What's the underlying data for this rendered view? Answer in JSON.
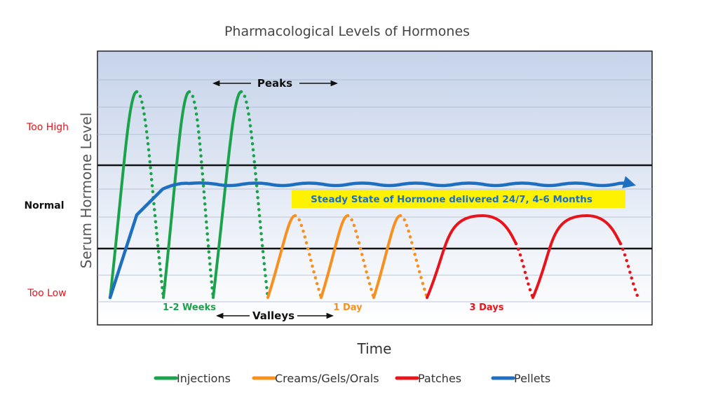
{
  "chart_data": {
    "type": "line",
    "title": "Pharmacological Levels of Hormones",
    "xlabel": "Time",
    "ylabel": "Serum Hormone Level",
    "y_zones": [
      {
        "label": "Too High",
        "color": "#e8141c"
      },
      {
        "label": "Normal",
        "color": "#111111"
      },
      {
        "label": "Too Low",
        "color": "#e8141c"
      }
    ],
    "annotations": {
      "peaks": "Peaks",
      "valleys": "Valleys",
      "injections_interval": "1-2 Weeks",
      "creams_interval": "1 Day",
      "patches_interval": "3 Days",
      "steady_state": "Steady State of Hormone delivered 24/7, 4-6 Months"
    },
    "legend": [
      "Injections",
      "Creams/Gels/Orals",
      "Patches",
      "Pellets"
    ],
    "series": [
      {
        "name": "Injections",
        "color": "#1aa34a"
      },
      {
        "name": "Creams/Gels/Orals",
        "color": "#f7901e"
      },
      {
        "name": "Patches",
        "color": "#e8141c"
      },
      {
        "name": "Pellets",
        "color": "#1e6fc0"
      }
    ],
    "grid": true,
    "background_gradient": [
      "#c9d5ea",
      "#ffffff"
    ]
  }
}
